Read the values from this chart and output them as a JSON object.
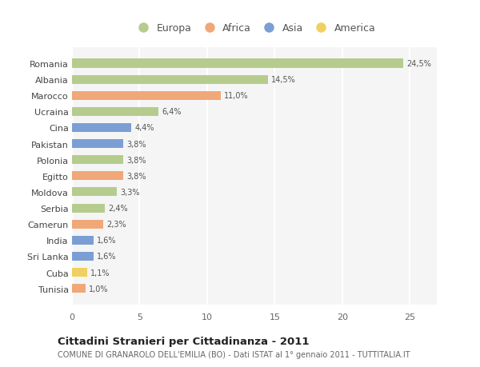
{
  "countries": [
    "Romania",
    "Albania",
    "Marocco",
    "Ucraina",
    "Cina",
    "Pakistan",
    "Polonia",
    "Egitto",
    "Moldova",
    "Serbia",
    "Camerun",
    "India",
    "Sri Lanka",
    "Cuba",
    "Tunisia"
  ],
  "values": [
    24.5,
    14.5,
    11.0,
    6.4,
    4.4,
    3.8,
    3.8,
    3.8,
    3.3,
    2.4,
    2.3,
    1.6,
    1.6,
    1.1,
    1.0
  ],
  "labels": [
    "24,5%",
    "14,5%",
    "11,0%",
    "6,4%",
    "4,4%",
    "3,8%",
    "3,8%",
    "3,8%",
    "3,3%",
    "2,4%",
    "2,3%",
    "1,6%",
    "1,6%",
    "1,1%",
    "1,0%"
  ],
  "categories": [
    "Europa",
    "Europa",
    "Africa",
    "Europa",
    "Asia",
    "Asia",
    "Europa",
    "Africa",
    "Europa",
    "Europa",
    "Africa",
    "Asia",
    "Asia",
    "America",
    "Africa"
  ],
  "colors": {
    "Europa": "#b5cc8e",
    "Africa": "#f0a878",
    "Asia": "#7b9fd4",
    "America": "#f0d060"
  },
  "xlim": [
    0,
    27
  ],
  "xticks": [
    0,
    5,
    10,
    15,
    20,
    25
  ],
  "title": "Cittadini Stranieri per Cittadinanza - 2011",
  "subtitle": "COMUNE DI GRANAROLO DELL'EMILIA (BO) - Dati ISTAT al 1° gennaio 2011 - TUTTITALIA.IT",
  "background_color": "#ffffff",
  "plot_background": "#f5f5f5",
  "grid_color": "#ffffff",
  "bar_height": 0.55,
  "legend_order": [
    "Europa",
    "Africa",
    "Asia",
    "America"
  ]
}
